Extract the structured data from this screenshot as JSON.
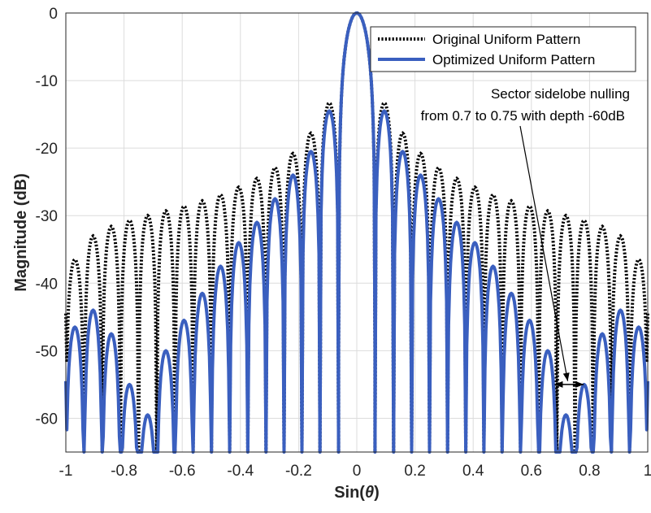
{
  "chart_data": {
    "type": "line",
    "title": "",
    "xlabel": "Sin(θ)",
    "ylabel": "Magnitude (dB)",
    "xlim": [
      -1,
      1
    ],
    "ylim": [
      -65,
      0
    ],
    "xticks": [
      -1,
      -0.8,
      -0.6,
      -0.4,
      -0.2,
      0,
      0.2,
      0.4,
      0.6,
      0.8,
      1
    ],
    "xtick_labels": [
      "-1",
      "-0.8",
      "-0.6",
      "-0.4",
      "-0.2",
      "0",
      "0.2",
      "0.4",
      "0.6",
      "0.8",
      "1"
    ],
    "yticks": [
      0,
      -10,
      -20,
      -30,
      -40,
      -50,
      -60
    ],
    "ytick_labels": [
      "0",
      "-10",
      "-20",
      "-30",
      "-40",
      "-50",
      "-60"
    ],
    "grid": true,
    "legend_position": "top-right",
    "series": [
      {
        "name": "Original Uniform Pattern",
        "style": "dotted",
        "color": "#000000",
        "sidelobe_peaks": [
          {
            "x": 0.095,
            "y": -13.3
          },
          {
            "x": 0.158,
            "y": -17.8
          },
          {
            "x": 0.219,
            "y": -20.8
          },
          {
            "x": 0.281,
            "y": -22.9
          },
          {
            "x": 0.343,
            "y": -24.5
          },
          {
            "x": 0.406,
            "y": -25.8
          },
          {
            "x": 0.468,
            "y": -26.9
          },
          {
            "x": 0.531,
            "y": -27.8
          },
          {
            "x": 0.594,
            "y": -28.6
          },
          {
            "x": 0.656,
            "y": -29.3
          },
          {
            "x": 0.719,
            "y": -30.0
          },
          {
            "x": 0.781,
            "y": -30.7
          },
          {
            "x": 0.844,
            "y": -31.6
          },
          {
            "x": 0.906,
            "y": -33.0
          },
          {
            "x": 0.969,
            "y": -36.5
          }
        ]
      },
      {
        "name": "Optimized Uniform Pattern",
        "style": "solid",
        "color": "#3a5fbf",
        "sidelobe_peaks": [
          {
            "x": 0.095,
            "y": -14.5
          },
          {
            "x": 0.158,
            "y": -20.5
          },
          {
            "x": 0.219,
            "y": -24.0
          },
          {
            "x": 0.281,
            "y": -27.5
          },
          {
            "x": 0.343,
            "y": -31.0
          },
          {
            "x": 0.406,
            "y": -34.0
          },
          {
            "x": 0.468,
            "y": -37.5
          },
          {
            "x": 0.531,
            "y": -41.5
          },
          {
            "x": 0.594,
            "y": -45.5
          },
          {
            "x": 0.656,
            "y": -50.0
          },
          {
            "x": 0.719,
            "y": -59.5
          },
          {
            "x": 0.781,
            "y": -55.0
          },
          {
            "x": 0.844,
            "y": -47.5
          },
          {
            "x": 0.906,
            "y": -44.0
          },
          {
            "x": 0.969,
            "y": -46.5
          }
        ]
      }
    ],
    "annotation": {
      "lines": [
        "Sector sidelobe nulling",
        "from 0.7 to 0.75 with depth -60dB"
      ],
      "arrow_target": {
        "x": 0.725,
        "y": -54.5
      },
      "range_arrow": {
        "x_start": 0.68,
        "x_end": 0.78,
        "y": -55
      }
    }
  }
}
